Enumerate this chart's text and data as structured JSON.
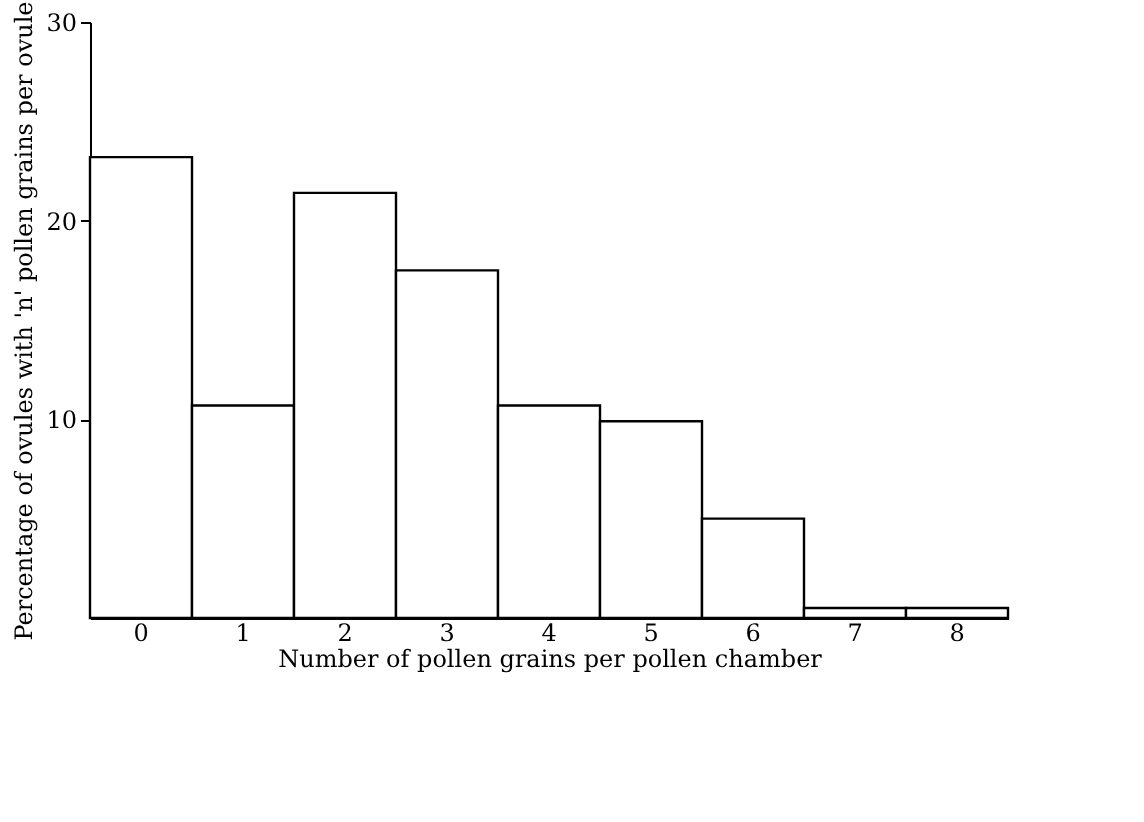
{
  "chart_data": {
    "type": "bar",
    "xlabel": "Number of pollen grains per pollen chamber",
    "ylabel": "Percentage of ovules with 'n' pollen grains per ovule",
    "categories": [
      "0",
      "1",
      "2",
      "3",
      "4",
      "5",
      "6",
      "7",
      "8"
    ],
    "values": [
      23.2,
      10.7,
      21.4,
      17.5,
      10.7,
      9.9,
      5.0,
      0.5,
      0.5
    ],
    "color": "#ffffff",
    "ylim": [
      0,
      30
    ],
    "yticks": [
      10,
      20,
      30
    ],
    "grid": false
  }
}
